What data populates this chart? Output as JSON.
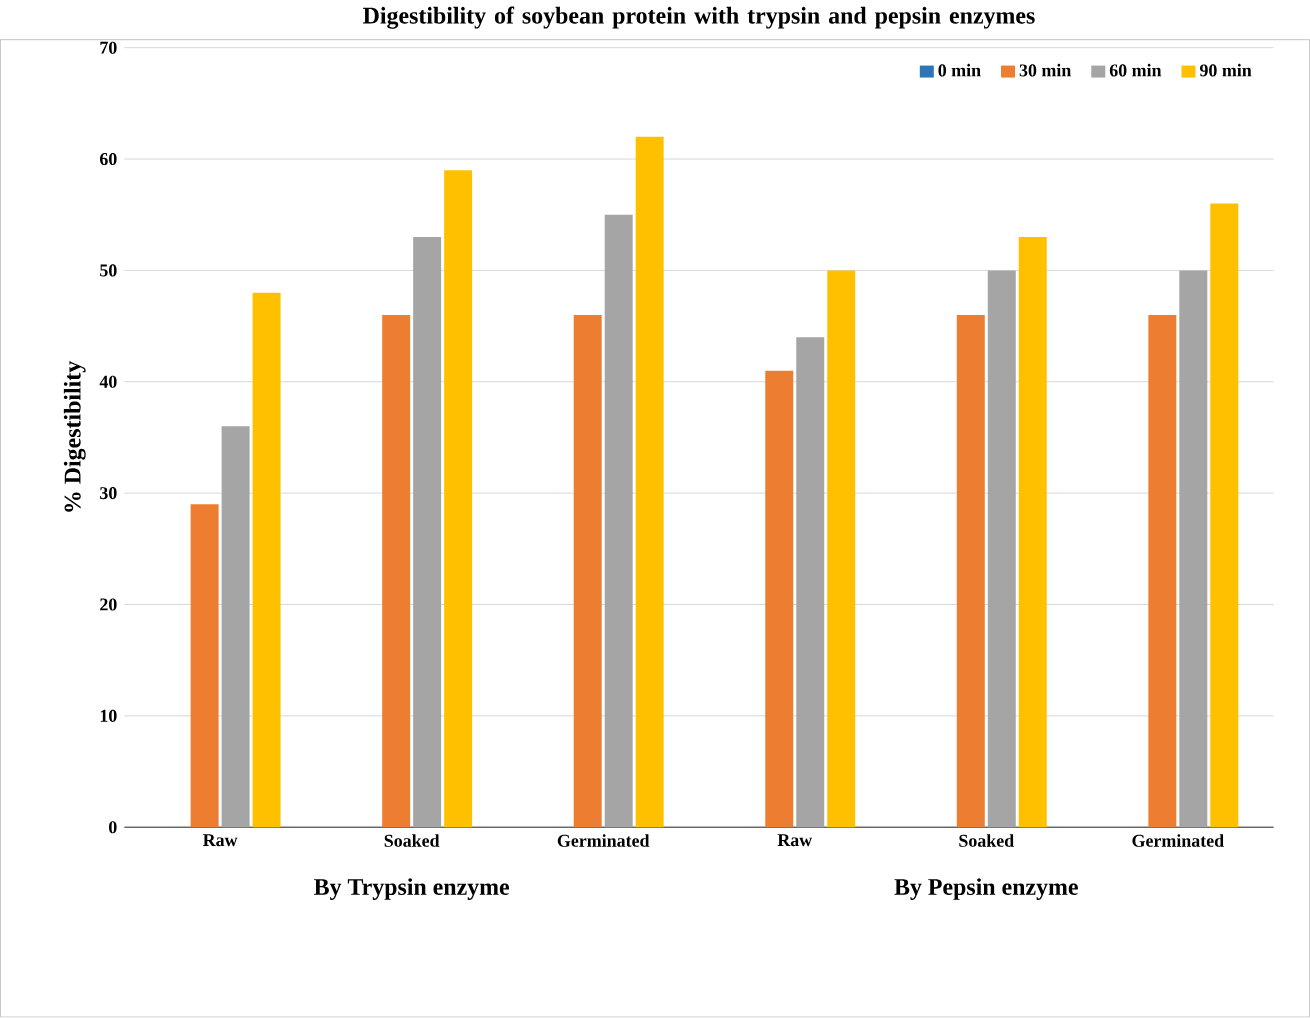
{
  "chart_data": {
    "type": "bar",
    "title": "Digestibility of soybean protein with trypsin and pepsin enzymes",
    "ylabel": "% Digestibility",
    "categories": [
      "Raw",
      "Soaked",
      "Germinated",
      "Raw",
      "Soaked",
      "Germinated"
    ],
    "series": [
      {
        "name": "0 min",
        "color": "#2e75b6",
        "values": [
          0,
          0,
          0,
          0,
          0,
          0
        ]
      },
      {
        "name": "30 min",
        "color": "#ed7d31",
        "values": [
          29,
          46,
          46,
          41,
          46,
          46
        ]
      },
      {
        "name": "60 min",
        "color": "#a5a5a5",
        "values": [
          36,
          53,
          55,
          44,
          50,
          50
        ]
      },
      {
        "name": "90 min",
        "color": "#ffc000",
        "values": [
          48,
          59,
          62,
          50,
          53,
          56
        ]
      }
    ],
    "annotations": [
      "By Trypsin enzyme",
      "By Pepsin enzyme"
    ],
    "ylim": [
      0,
      70
    ],
    "yticks": [
      0,
      10,
      20,
      30,
      40,
      50,
      60,
      70
    ],
    "grid": "y",
    "legend": "top right"
  }
}
